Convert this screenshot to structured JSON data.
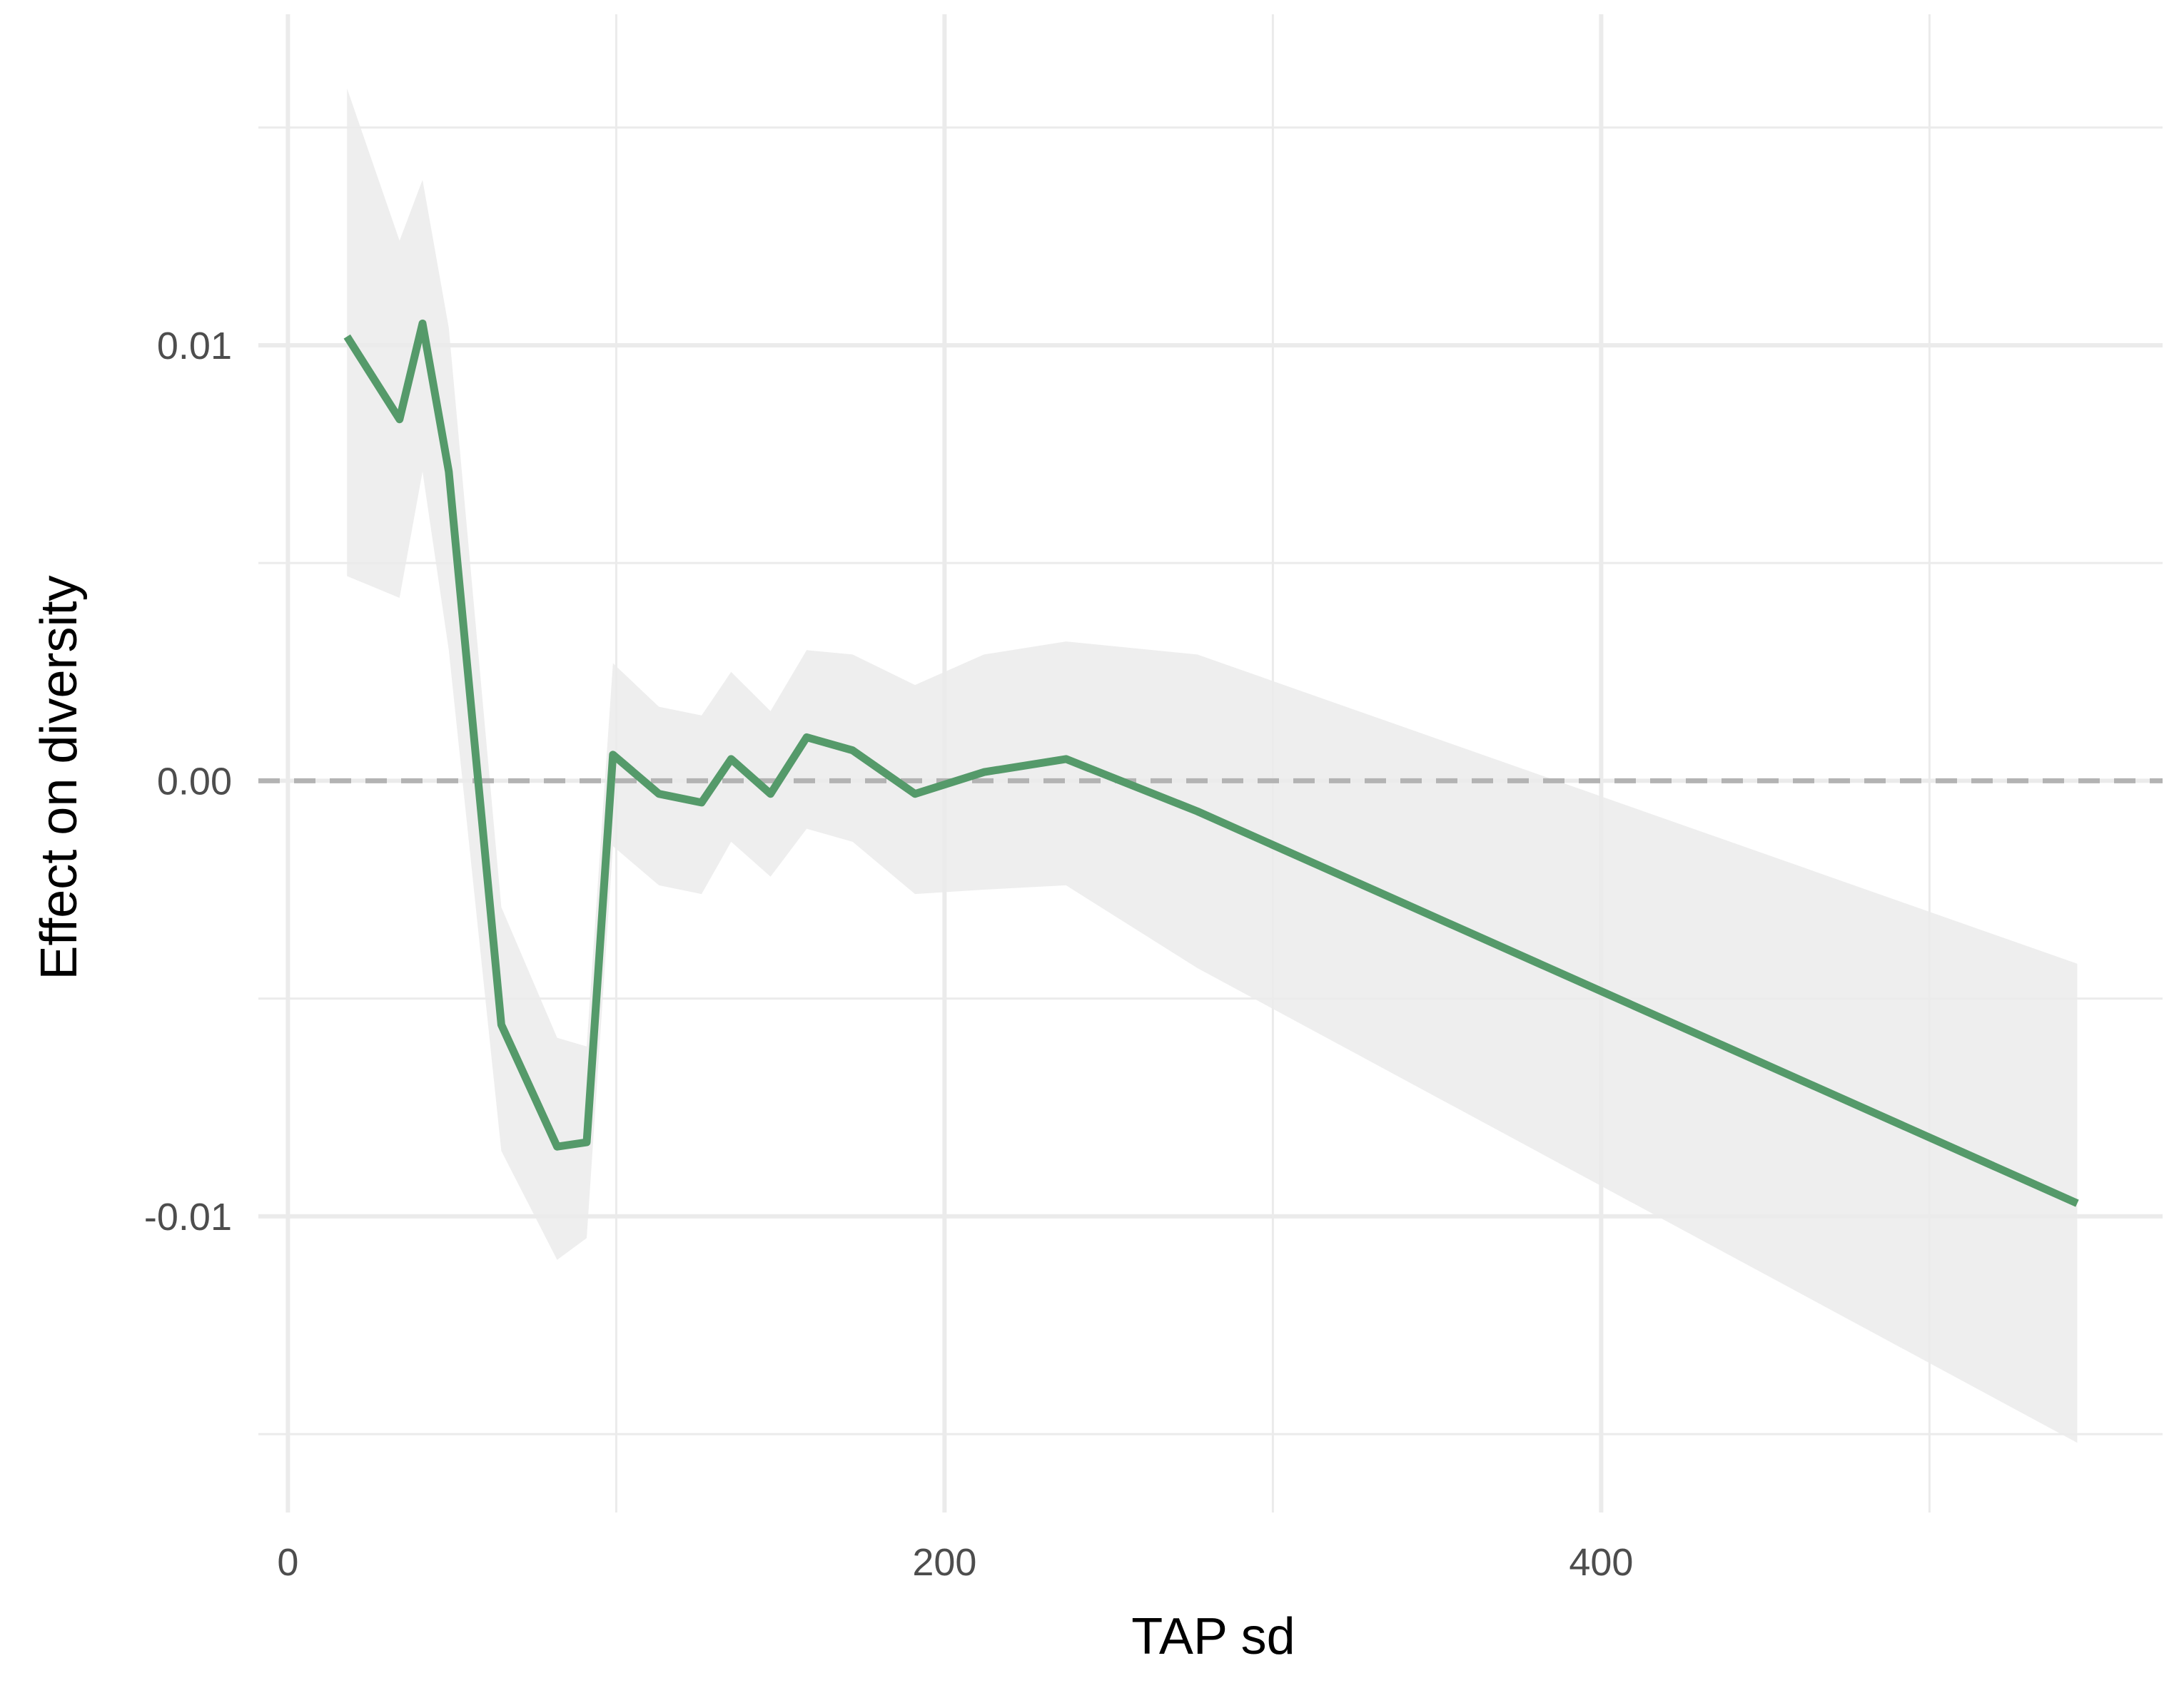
{
  "chart_data": {
    "type": "line",
    "xlabel": "TAP sd",
    "ylabel": "Effect on diversity",
    "xlim": [
      -9,
      571
    ],
    "ylim": [
      -0.0168,
      0.0176
    ],
    "x_ticks": [
      0,
      200,
      400
    ],
    "x_tick_labels": [
      "0",
      "200",
      "400"
    ],
    "y_ticks": [
      -0.01,
      0.0,
      0.01
    ],
    "y_tick_labels": [
      "-0.01",
      "0.00",
      "0.01"
    ],
    "x_minor_grid": [
      100,
      300,
      500
    ],
    "y_minor_grid": [
      -0.015,
      -0.005,
      0.005,
      0.015
    ],
    "grid": true,
    "reference_line": {
      "y": 0,
      "style": "dashed",
      "color": "#b3b3b3"
    },
    "colors": {
      "line": "#559a6a",
      "ribbon": "#ebebeb",
      "grid": "#ebebeb"
    },
    "series": [
      {
        "x": [
          18,
          34,
          41,
          49,
          65,
          82,
          91,
          99,
          113,
          126,
          135,
          147,
          158,
          172,
          191,
          212,
          237,
          277,
          545
        ],
        "y": [
          0.0102,
          0.0083,
          0.0105,
          0.0071,
          -0.0056,
          -0.0084,
          -0.0083,
          0.0006,
          -0.0003,
          -0.0005,
          0.0005,
          -0.0003,
          0.001,
          0.0007,
          -0.0003,
          0.0002,
          0.0005,
          -0.0007,
          -0.0097
        ],
        "lower": [
          0.0047,
          0.0042,
          0.0071,
          0.003,
          -0.0085,
          -0.011,
          -0.0105,
          -0.0015,
          -0.0024,
          -0.0026,
          -0.0014,
          -0.0022,
          -0.0011,
          -0.0014,
          -0.0026,
          -0.0025,
          -0.0024,
          -0.0043,
          -0.0152
        ],
        "upper": [
          0.0159,
          0.0124,
          0.0138,
          0.0104,
          -0.0029,
          -0.0059,
          -0.0061,
          0.0027,
          0.0017,
          0.0015,
          0.0025,
          0.0016,
          0.003,
          0.0029,
          0.0022,
          0.0029,
          0.0032,
          0.0029,
          -0.0042
        ]
      }
    ]
  }
}
